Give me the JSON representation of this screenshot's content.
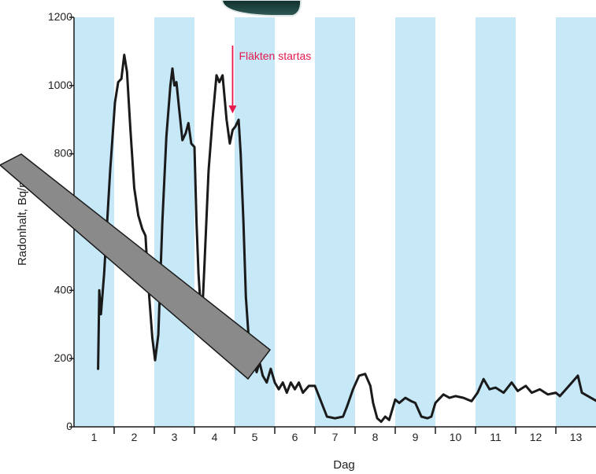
{
  "chart_data": {
    "type": "line",
    "title": "",
    "xlabel": "Dag",
    "ylabel": "Radonhalt, Bq/m3",
    "xlim": [
      0.5,
      13.5
    ],
    "ylim": [
      0,
      1200
    ],
    "x_ticks": [
      "1",
      "2",
      "3",
      "4",
      "5",
      "6",
      "7",
      "8",
      "9",
      "10",
      "11",
      "12",
      "13"
    ],
    "y_ticks": [
      "0",
      "200",
      "400",
      "800",
      "1000",
      "1200"
    ],
    "day_shading": "alternating light-blue day bands",
    "colors": {
      "band": "#c6e8f7",
      "line": "#1a1a1a",
      "annotation": "#e5194c",
      "overlay": "#8c8c8c"
    },
    "annotation": {
      "text": "Fläkten startas",
      "x": 4.45,
      "y": 900
    },
    "series": [
      {
        "values": [
          [
            1.1,
            170
          ],
          [
            1.13,
            400
          ],
          [
            1.17,
            330
          ],
          [
            1.25,
            450
          ],
          [
            1.4,
            750
          ],
          [
            1.52,
            950
          ],
          [
            1.6,
            1010
          ],
          [
            1.68,
            1020
          ],
          [
            1.75,
            1090
          ],
          [
            1.82,
            1040
          ],
          [
            1.9,
            880
          ],
          [
            2.0,
            700
          ],
          [
            2.1,
            620
          ],
          [
            2.2,
            580
          ],
          [
            2.28,
            560
          ],
          [
            2.35,
            420
          ],
          [
            2.45,
            260
          ],
          [
            2.52,
            195
          ],
          [
            2.6,
            270
          ],
          [
            2.7,
            600
          ],
          [
            2.8,
            850
          ],
          [
            2.9,
            1000
          ],
          [
            2.95,
            1050
          ],
          [
            3.0,
            1000
          ],
          [
            3.05,
            1010
          ],
          [
            3.12,
            930
          ],
          [
            3.2,
            840
          ],
          [
            3.28,
            860
          ],
          [
            3.35,
            890
          ],
          [
            3.42,
            830
          ],
          [
            3.5,
            820
          ],
          [
            3.55,
            600
          ],
          [
            3.6,
            450
          ],
          [
            3.68,
            300
          ],
          [
            3.75,
            480
          ],
          [
            3.85,
            750
          ],
          [
            3.95,
            900
          ],
          [
            4.05,
            1030
          ],
          [
            4.12,
            1010
          ],
          [
            4.2,
            1030
          ],
          [
            4.3,
            900
          ],
          [
            4.38,
            830
          ],
          [
            4.45,
            870
          ],
          [
            4.52,
            880
          ],
          [
            4.6,
            900
          ],
          [
            4.65,
            800
          ],
          [
            4.72,
            600
          ],
          [
            4.78,
            380
          ],
          [
            4.85,
            260
          ],
          [
            4.95,
            200
          ],
          [
            5.05,
            160
          ],
          [
            5.12,
            190
          ],
          [
            5.2,
            150
          ],
          [
            5.3,
            130
          ],
          [
            5.4,
            170
          ],
          [
            5.5,
            130
          ],
          [
            5.6,
            110
          ],
          [
            5.7,
            130
          ],
          [
            5.8,
            100
          ],
          [
            5.9,
            130
          ],
          [
            6.0,
            110
          ],
          [
            6.1,
            130
          ],
          [
            6.2,
            100
          ],
          [
            6.35,
            120
          ],
          [
            6.5,
            120
          ],
          [
            6.6,
            90
          ],
          [
            6.7,
            60
          ],
          [
            6.8,
            30
          ],
          [
            7.0,
            25
          ],
          [
            7.2,
            30
          ],
          [
            7.3,
            60
          ],
          [
            7.45,
            110
          ],
          [
            7.6,
            150
          ],
          [
            7.75,
            155
          ],
          [
            7.88,
            120
          ],
          [
            7.95,
            70
          ],
          [
            8.05,
            25
          ],
          [
            8.15,
            15
          ],
          [
            8.25,
            30
          ],
          [
            8.35,
            20
          ],
          [
            8.5,
            80
          ],
          [
            8.6,
            70
          ],
          [
            8.75,
            85
          ],
          [
            8.9,
            75
          ],
          [
            9.0,
            70
          ],
          [
            9.15,
            30
          ],
          [
            9.3,
            25
          ],
          [
            9.4,
            30
          ],
          [
            9.5,
            70
          ],
          [
            9.7,
            95
          ],
          [
            9.85,
            85
          ],
          [
            10.0,
            90
          ],
          [
            10.2,
            85
          ],
          [
            10.4,
            75
          ],
          [
            10.55,
            100
          ],
          [
            10.7,
            140
          ],
          [
            10.85,
            110
          ],
          [
            11.0,
            115
          ],
          [
            11.2,
            100
          ],
          [
            11.4,
            130
          ],
          [
            11.55,
            105
          ],
          [
            11.75,
            120
          ],
          [
            11.9,
            100
          ],
          [
            12.1,
            110
          ],
          [
            12.3,
            95
          ],
          [
            12.5,
            100
          ],
          [
            12.6,
            90
          ],
          [
            12.75,
            110
          ],
          [
            12.9,
            130
          ],
          [
            13.05,
            150
          ],
          [
            13.15,
            100
          ],
          [
            13.3,
            90
          ],
          [
            13.45,
            80
          ],
          [
            13.6,
            70
          ]
        ]
      }
    ]
  }
}
